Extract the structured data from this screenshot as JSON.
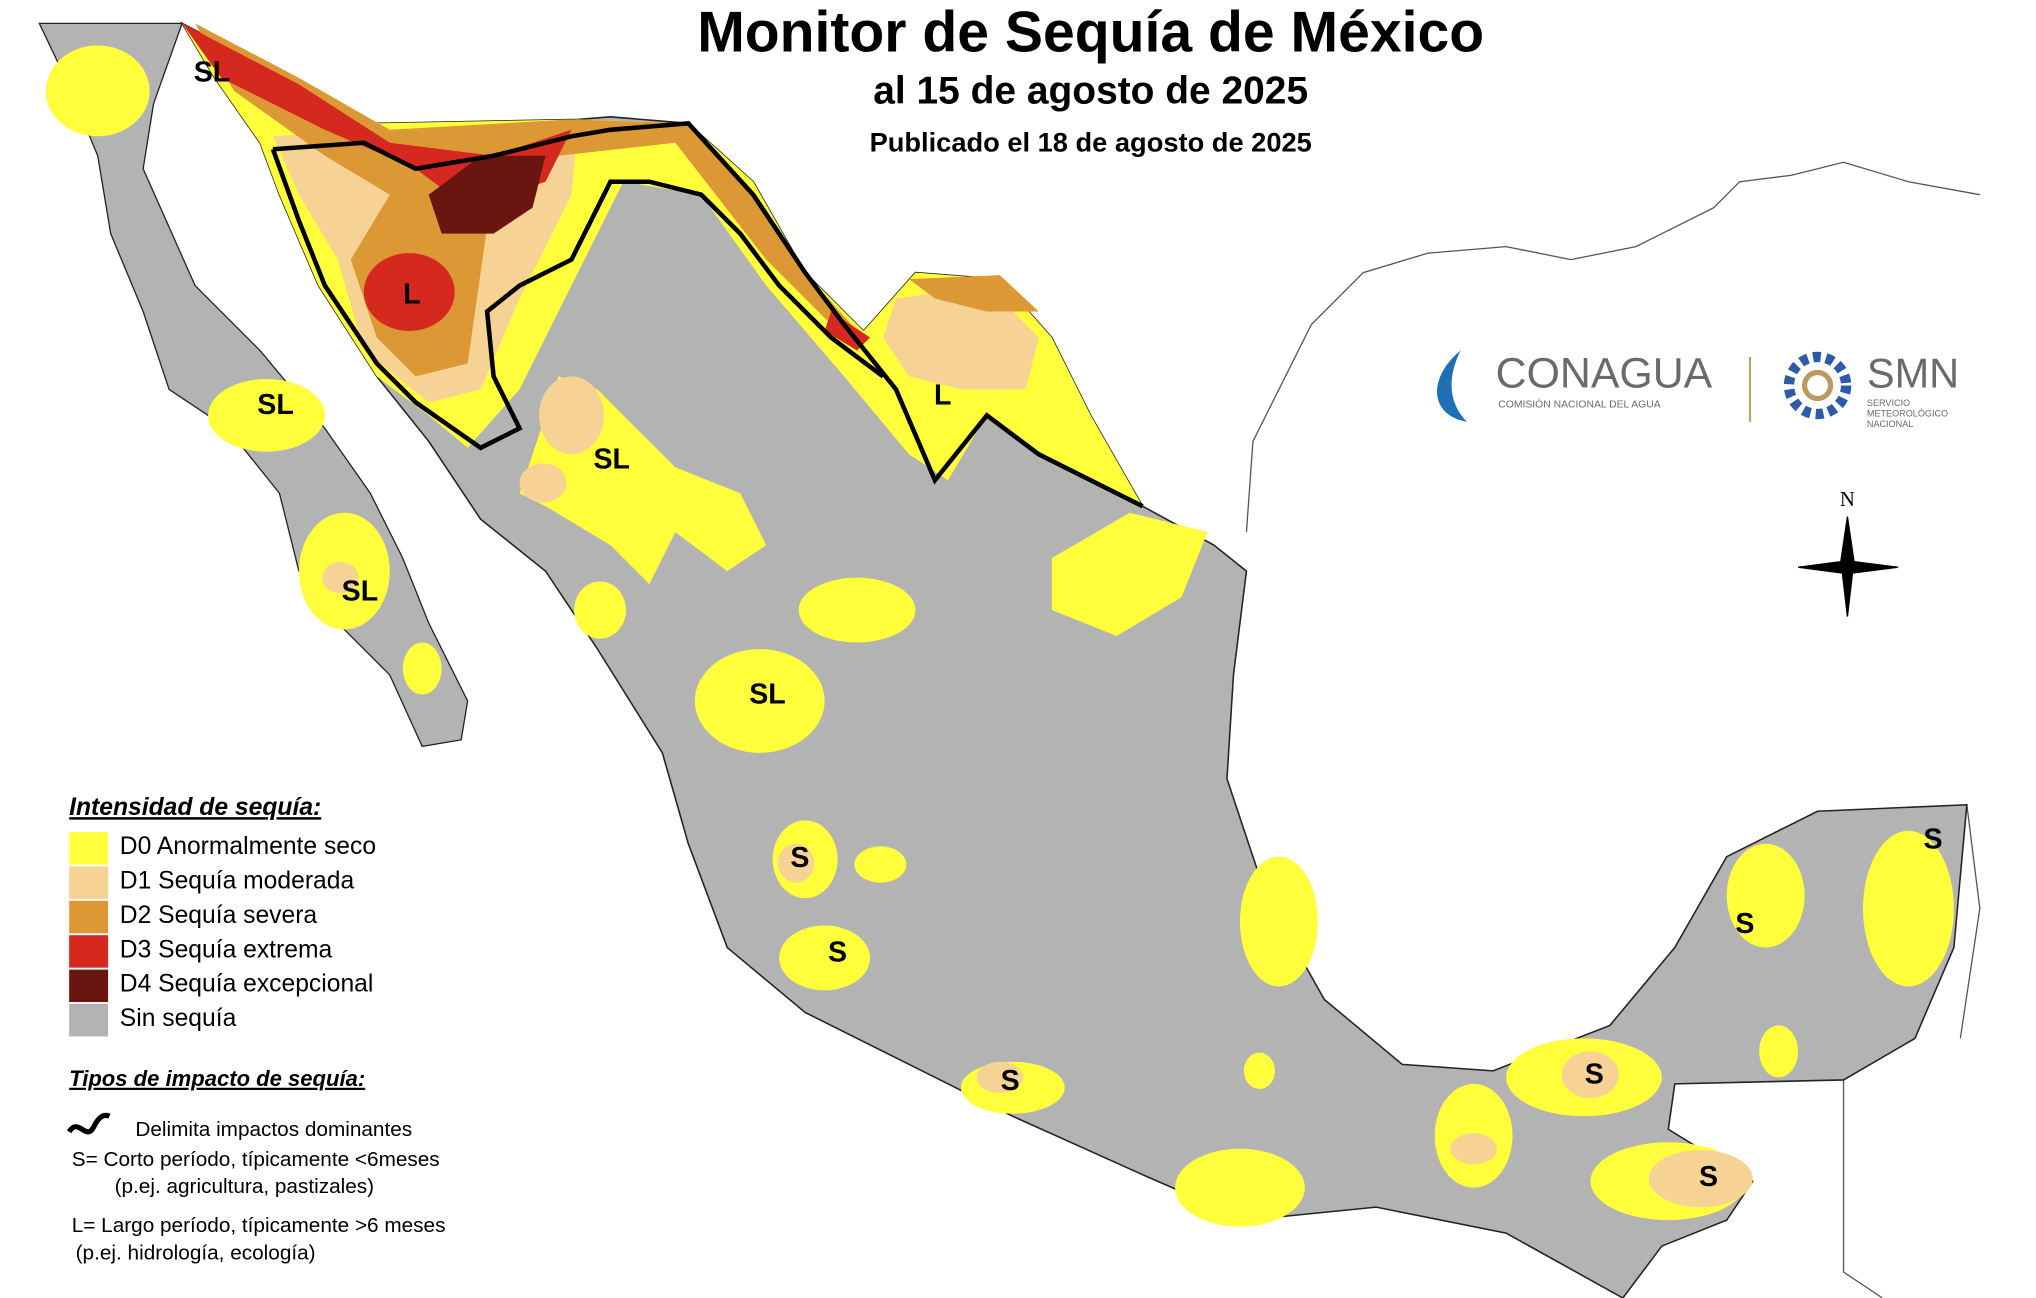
{
  "header": {
    "title": "Monitor de Sequía de México",
    "subtitle": "al 15 de agosto de 2025",
    "published": "Publicado el 18 de agosto de 2025"
  },
  "legend": {
    "title": "Intensidad de sequía:",
    "items": [
      {
        "label": "D0 Anormalmente seco",
        "color": "#ffff3c"
      },
      {
        "label": "D1 Sequía moderada",
        "color": "#f6d394"
      },
      {
        "label": "D2 Sequía severa",
        "color": "#dc9834"
      },
      {
        "label": "D3 Sequía extrema",
        "color": "#d5281e"
      },
      {
        "label": "D4 Sequía excepcional",
        "color": "#6b1511"
      },
      {
        "label": "Sin sequía",
        "color": "#b3b3b3"
      }
    ]
  },
  "impacts": {
    "title": "Tipos de impacto de sequía:",
    "lines": [
      "Delimita impactos dominantes",
      "S= Corto período, típicamente <6meses",
      "(p.ej. agricultura, pastizales)",
      "L= Largo período, típicamente >6 meses",
      "(p.ej. hidrología, ecología)"
    ]
  },
  "map_labels": [
    "SL",
    "L",
    "SL",
    "SL",
    "SL",
    "L",
    "SL",
    "S",
    "S",
    "S",
    "S",
    "S",
    "S",
    "S"
  ],
  "logos": {
    "conagua": "CONAGUA",
    "conagua_sub": "COMISIÓN NACIONAL DEL AGUA",
    "smn": "SMN",
    "smn_sub": [
      "SERVICIO",
      "METEOROLÓGICO",
      "NACIONAL"
    ]
  },
  "north": "N"
}
